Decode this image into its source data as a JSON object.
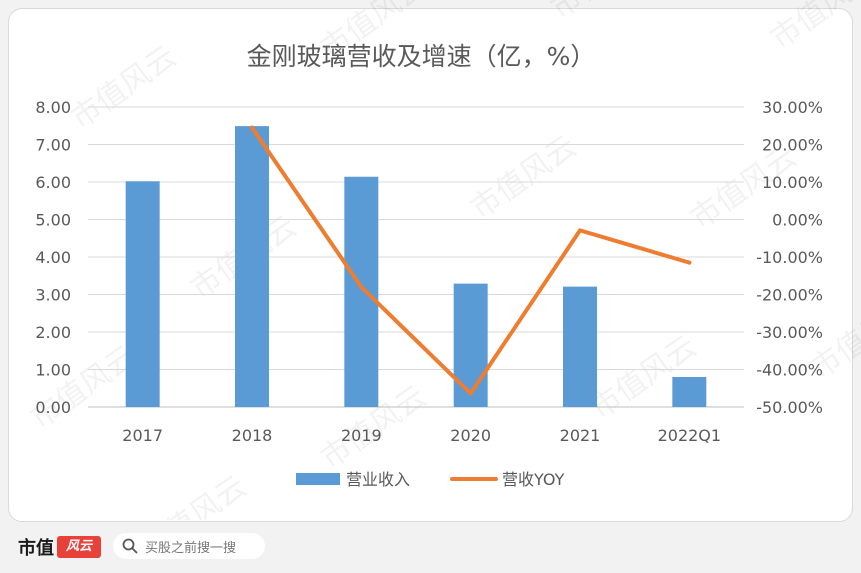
{
  "chart_data": {
    "type": "bar",
    "title": "金刚玻璃营收及增速（亿，%）",
    "categories": [
      "2017",
      "2018",
      "2019",
      "2020",
      "2021",
      "2022Q1"
    ],
    "series": [
      {
        "name": "营业收入",
        "type": "bar",
        "axis": "left",
        "color": "#5b9bd5",
        "values": [
          6.02,
          7.49,
          6.14,
          3.29,
          3.21,
          0.8
        ]
      },
      {
        "name": "营收YOY",
        "type": "line",
        "axis": "right",
        "color": "#ed7d31",
        "values": [
          null,
          24.5,
          -18.0,
          -46.4,
          -2.9,
          -11.5
        ]
      }
    ],
    "y_left": {
      "min": 0,
      "max": 8,
      "step": 1,
      "ticks": [
        "0.00",
        "1.00",
        "2.00",
        "3.00",
        "4.00",
        "5.00",
        "6.00",
        "7.00",
        "8.00"
      ]
    },
    "y_right": {
      "min": -50,
      "max": 30,
      "step": 10,
      "ticks": [
        "-50.00%",
        "-40.00%",
        "-30.00%",
        "-20.00%",
        "-10.00%",
        "0.00%",
        "10.00%",
        "20.00%",
        "30.00%"
      ]
    },
    "grid": true,
    "legend_position": "bottom"
  },
  "watermark": "市值风云",
  "footer": {
    "brand": "市值",
    "brand_logo": "风云",
    "search_text": "买股之前搜一搜"
  }
}
